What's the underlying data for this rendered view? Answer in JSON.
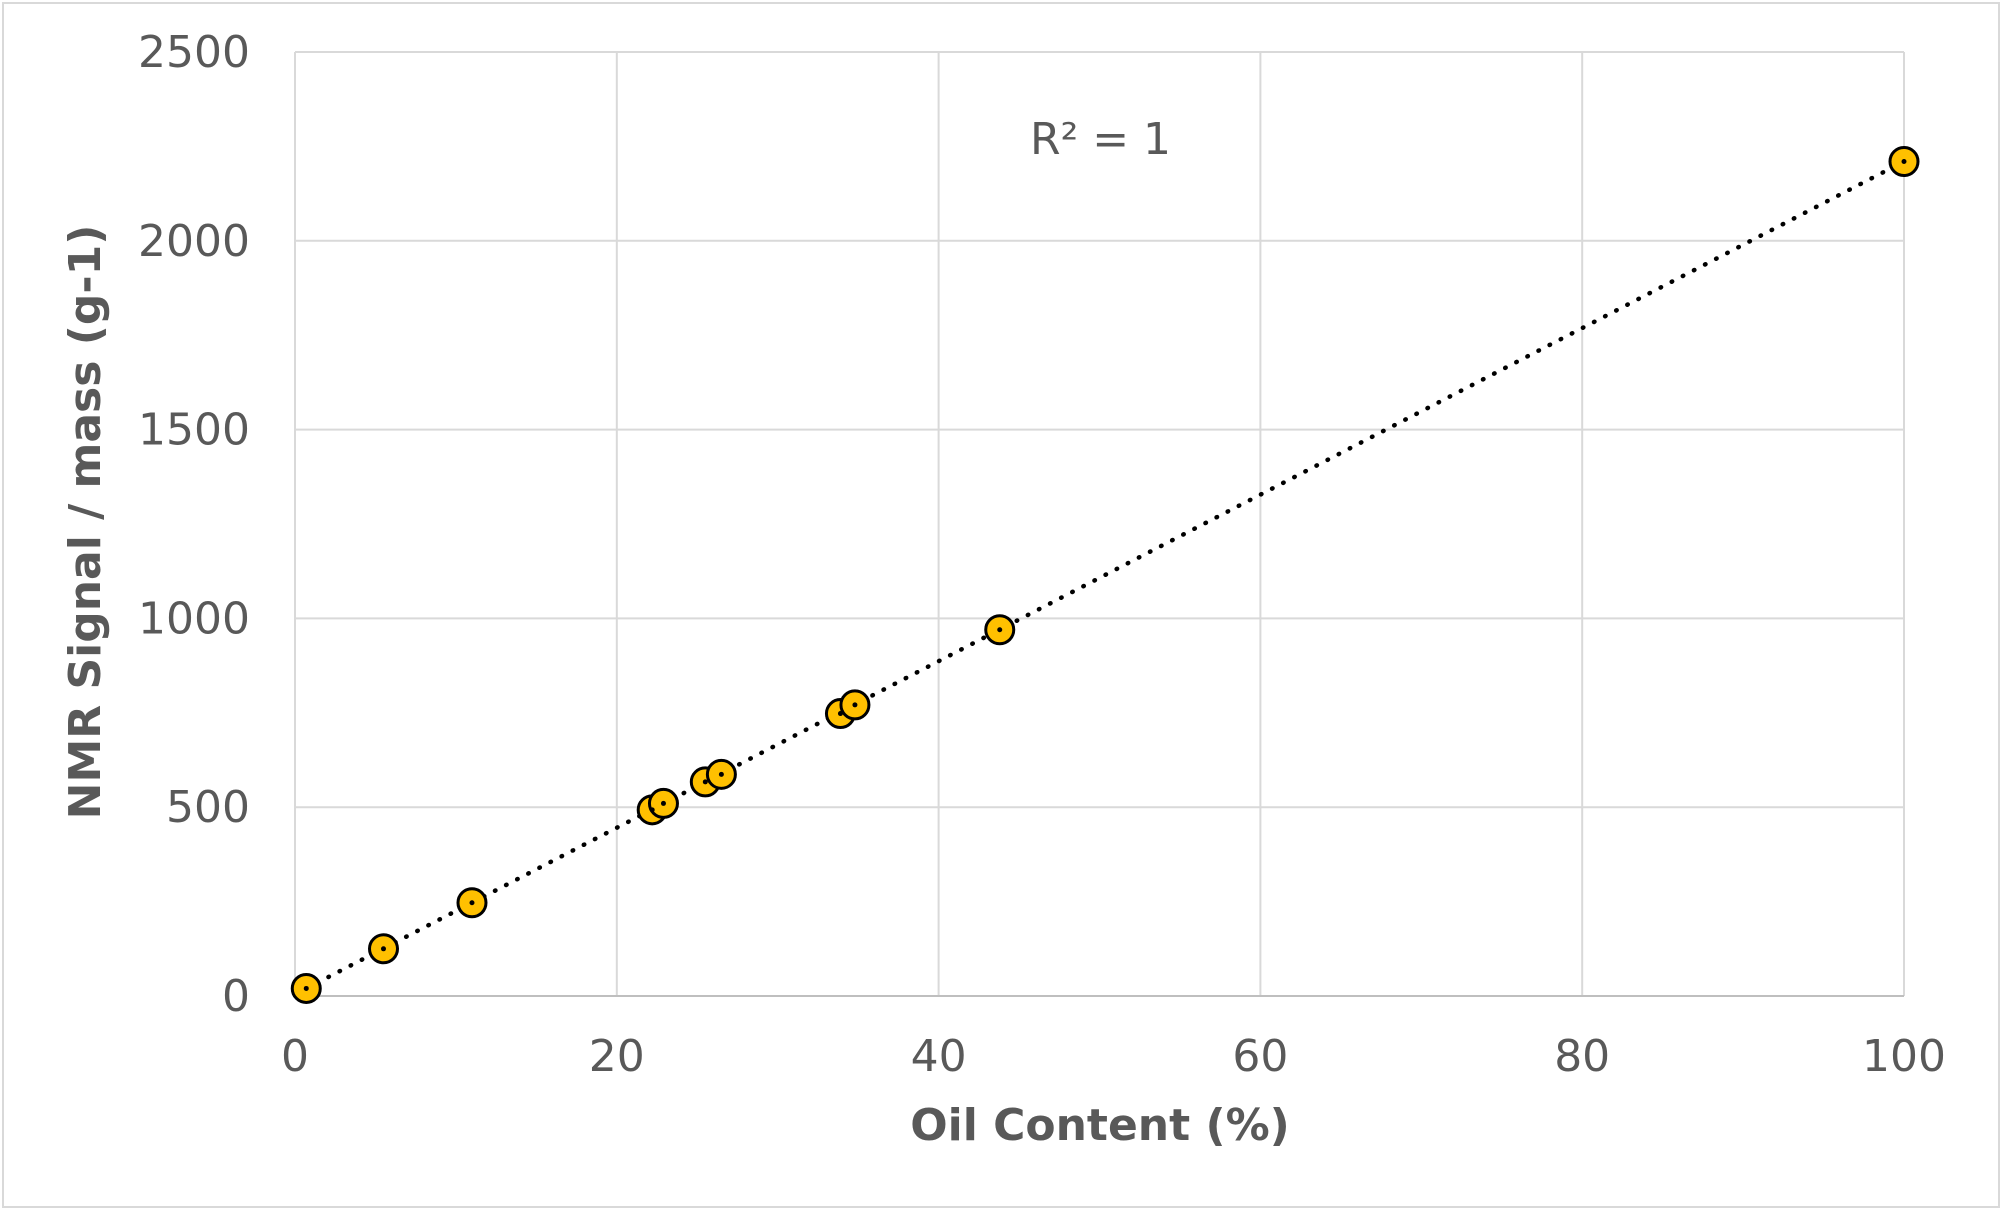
{
  "chart_data": {
    "type": "scatter",
    "title": "",
    "xlabel": "Oil Content (%)",
    "ylabel": "NMR Signal / mass (g-1)",
    "xlim": [
      0,
      100
    ],
    "ylim": [
      0,
      2500
    ],
    "xticks": [
      0,
      20,
      40,
      60,
      80,
      100
    ],
    "yticks": [
      0,
      500,
      1000,
      1500,
      2000,
      2500
    ],
    "grid": true,
    "legend": "none",
    "series": [
      {
        "marker_color": "#FFC000",
        "marker_edge_color": "#000000",
        "points": [
          {
            "x": 0.7,
            "y": 20
          },
          {
            "x": 5.5,
            "y": 125
          },
          {
            "x": 11.0,
            "y": 247
          },
          {
            "x": 22.2,
            "y": 493
          },
          {
            "x": 22.9,
            "y": 510
          },
          {
            "x": 25.5,
            "y": 567
          },
          {
            "x": 26.5,
            "y": 587
          },
          {
            "x": 33.9,
            "y": 748
          },
          {
            "x": 34.8,
            "y": 771
          },
          {
            "x": 43.8,
            "y": 970
          },
          {
            "x": 100,
            "y": 2210
          }
        ]
      }
    ],
    "trendline": {
      "type": "linear",
      "style": "dotted",
      "color": "#000000",
      "from": {
        "x": 0.7,
        "y": 20
      },
      "to": {
        "x": 100,
        "y": 2210
      }
    },
    "annotation": {
      "label": "R² = 1"
    }
  }
}
